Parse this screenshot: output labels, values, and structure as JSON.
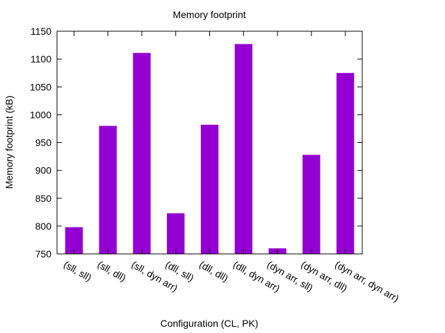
{
  "chart_data": {
    "type": "bar",
    "title": "Memory footprint",
    "xlabel": "Configuration (CL, PK)",
    "ylabel": "Memory footprint (kB)",
    "ylim": [
      750,
      1150
    ],
    "yticks": [
      750,
      800,
      850,
      900,
      950,
      1000,
      1050,
      1100,
      1150
    ],
    "categories": [
      "(sll, sll)",
      "(sll, dll)",
      "(sll, dyn arr)",
      "(dll, sll)",
      "(dll, dll)",
      "(dll, dyn arr)",
      "(dyn arr, sll)",
      "(dyn arr, dll)",
      "(dyn arr, dyn arr)"
    ],
    "values": [
      798,
      980,
      1111,
      823,
      982,
      1127,
      760,
      928,
      1075
    ],
    "bar_color": "#9400d3",
    "grid": false,
    "legend": false
  }
}
